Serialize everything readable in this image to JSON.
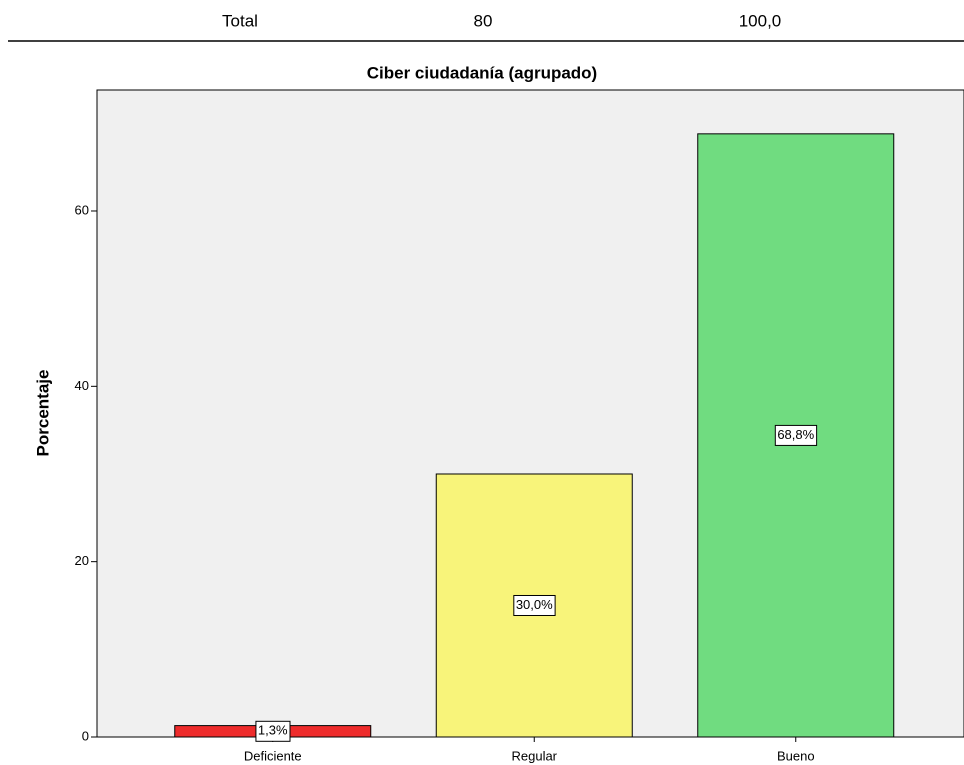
{
  "table": {
    "rows": [
      [
        "Total",
        80,
        "100,0"
      ]
    ]
  },
  "chart_data": {
    "type": "bar",
    "title": "Ciber ciudadanía (agrupado)",
    "y_label": "Porcentaje",
    "categories": [
      "Deficiente",
      "Regular",
      "Bueno"
    ],
    "values": [
      1.3,
      30.0,
      68.8
    ],
    "value_labels": [
      "1,3%",
      "30,0%",
      "68,8%"
    ],
    "colors": [
      "#ee2b2b",
      "#f8f47a",
      "#70dc80"
    ],
    "ylim": [
      0,
      73.8
    ],
    "yticks": [
      0,
      20,
      40,
      60
    ],
    "grid": false
  }
}
